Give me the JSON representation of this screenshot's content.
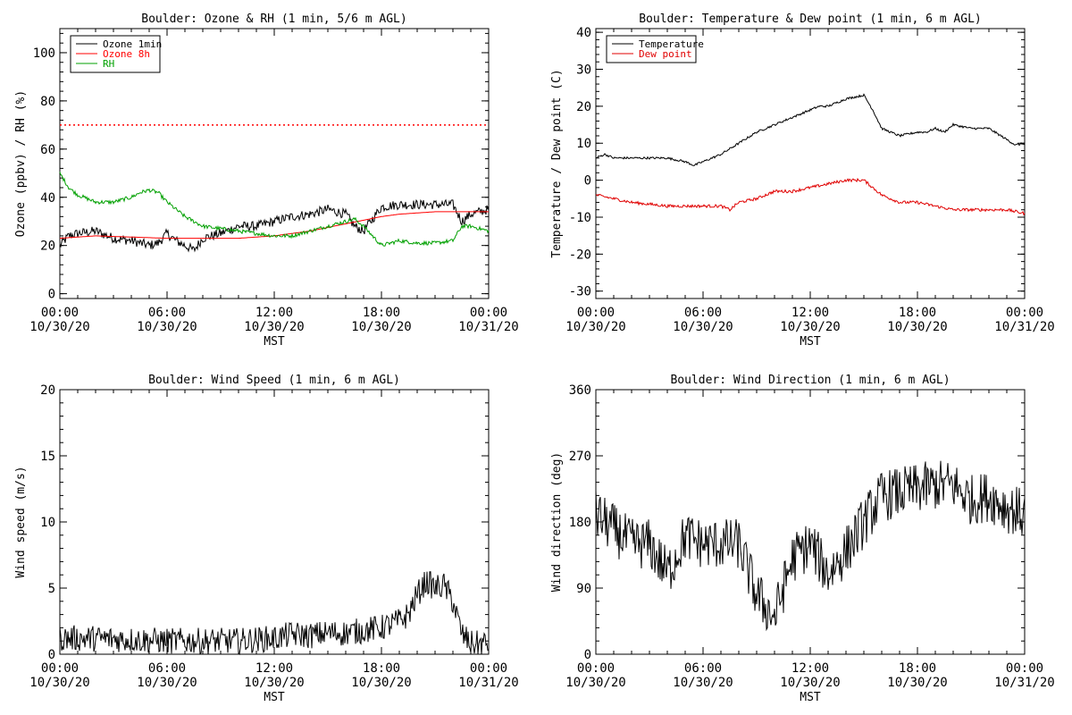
{
  "chart_data": [
    {
      "type": "line",
      "title": "Boulder: Ozone & RH (1 min, 5/6 m AGL)",
      "xlabel": "MST",
      "ylabel": "Ozone (ppbv) / RH (%)",
      "x_ticks": [
        [
          "00:00",
          "10/30/20"
        ],
        [
          "06:00",
          "10/30/20"
        ],
        [
          "12:00",
          "10/30/20"
        ],
        [
          "18:00",
          "10/30/20"
        ],
        [
          "00:00",
          "10/31/20"
        ]
      ],
      "xlim": [
        0,
        24
      ],
      "ylim": [
        -2,
        110
      ],
      "y_ticks": [
        0,
        20,
        40,
        60,
        80,
        100
      ],
      "legend_position": "top-left",
      "reference_line": {
        "y": 70,
        "color": "#ff0000",
        "style": "dotted"
      },
      "series": [
        {
          "name": "Ozone 1min",
          "color": "#000000",
          "noise": 2.0,
          "x": [
            0,
            0.5,
            1,
            2,
            3,
            4,
            5,
            5.5,
            6,
            6.5,
            7,
            7.5,
            8,
            9,
            10,
            11,
            12,
            13,
            14,
            15,
            16,
            16.5,
            17,
            18,
            19,
            20,
            21,
            22,
            22.5,
            23,
            24
          ],
          "y": [
            20,
            24,
            25,
            26,
            23,
            22,
            20,
            21,
            25,
            22,
            20,
            18,
            23,
            25,
            28,
            28,
            30,
            32,
            33,
            35,
            33,
            28,
            26,
            36,
            37,
            37,
            37,
            37,
            30,
            33,
            35
          ]
        },
        {
          "name": "Ozone 8h",
          "color": "#ff0000",
          "noise": 0,
          "x": [
            0,
            2,
            4,
            6,
            8,
            10,
            12,
            14,
            16,
            17,
            18,
            19,
            20,
            21,
            22,
            23,
            24
          ],
          "y": [
            23,
            24,
            23.5,
            23,
            23,
            23,
            24,
            26,
            29,
            30.5,
            32,
            33,
            33.5,
            34,
            34,
            34,
            34
          ]
        },
        {
          "name": "RH",
          "color": "#00a000",
          "noise": 0.8,
          "x": [
            0,
            0.5,
            1,
            2,
            3,
            4,
            4.5,
            5,
            5.5,
            6,
            7,
            8,
            9,
            10,
            11,
            12,
            13,
            14,
            15,
            16,
            16.5,
            17,
            18,
            19,
            20,
            21,
            22,
            22.5,
            23,
            24
          ],
          "y": [
            50,
            44,
            41,
            38,
            38,
            40,
            42,
            43,
            42,
            38,
            32,
            28,
            27,
            26,
            25,
            24,
            24,
            26,
            28,
            30,
            31,
            28,
            20,
            22,
            21,
            21,
            22,
            28,
            28,
            26
          ]
        }
      ]
    },
    {
      "type": "line",
      "title": "Boulder: Temperature & Dew point (1 min, 6 m AGL)",
      "xlabel": "MST",
      "ylabel": "Temperature / Dew point (C)",
      "x_ticks": [
        [
          "00:00",
          "10/30/20"
        ],
        [
          "06:00",
          "10/30/20"
        ],
        [
          "12:00",
          "10/30/20"
        ],
        [
          "18:00",
          "10/30/20"
        ],
        [
          "00:00",
          "10/31/20"
        ]
      ],
      "xlim": [
        0,
        24
      ],
      "ylim": [
        -32,
        41
      ],
      "y_ticks": [
        -30,
        -20,
        -10,
        0,
        10,
        20,
        30,
        40
      ],
      "legend_position": "top-left",
      "series": [
        {
          "name": "Temperature",
          "color": "#000000",
          "noise": 0.3,
          "x": [
            0,
            0.5,
            1,
            2,
            3,
            4,
            5,
            5.5,
            6,
            7,
            8,
            9,
            10,
            11,
            12,
            12.5,
            13,
            14,
            15,
            15.5,
            16,
            17,
            18,
            18.5,
            19,
            19.5,
            20,
            21,
            22,
            23,
            23.5,
            24
          ],
          "y": [
            6,
            7,
            6,
            6,
            6,
            6,
            5,
            4,
            5,
            7,
            10,
            13,
            15,
            17,
            19,
            20,
            20,
            22,
            23,
            19,
            14,
            12,
            13,
            13,
            14,
            13,
            15,
            14,
            14,
            11,
            9.5,
            10
          ]
        },
        {
          "name": "Dew point",
          "color": "#e00000",
          "noise": 0.4,
          "x": [
            0,
            1,
            2,
            3,
            4,
            5,
            6,
            7,
            7.5,
            8,
            9,
            10,
            11,
            12,
            13,
            14,
            15,
            15.5,
            16,
            17,
            18,
            19,
            20,
            21,
            22,
            23,
            24
          ],
          "y": [
            -4,
            -5,
            -6,
            -6.5,
            -7,
            -7,
            -7,
            -7,
            -8,
            -6,
            -5,
            -3,
            -3,
            -2,
            -1,
            0,
            0,
            -2,
            -4,
            -6,
            -6,
            -7,
            -8,
            -8,
            -8,
            -8,
            -9
          ]
        }
      ]
    },
    {
      "type": "line",
      "title": "Boulder: Wind Speed (1 min, 6 m AGL)",
      "xlabel": "MST",
      "ylabel": "Wind speed (m/s)",
      "x_ticks": [
        [
          "00:00",
          "10/30/20"
        ],
        [
          "06:00",
          "10/30/20"
        ],
        [
          "12:00",
          "10/30/20"
        ],
        [
          "18:00",
          "10/30/20"
        ],
        [
          "00:00",
          "10/31/20"
        ]
      ],
      "xlim": [
        0,
        24
      ],
      "ylim": [
        0,
        20
      ],
      "y_ticks": [
        0,
        5,
        10,
        15,
        20
      ],
      "series": [
        {
          "name": "",
          "color": "#000000",
          "noise": 1.0,
          "min": 0,
          "x": [
            0,
            2,
            4,
            6,
            8,
            10,
            12,
            13,
            14,
            15,
            16,
            17,
            18,
            19,
            19.5,
            20,
            20.5,
            21,
            21.5,
            22,
            22.5,
            23,
            23.5,
            24
          ],
          "y": [
            1.2,
            1.2,
            1.1,
            1.0,
            1.0,
            1.0,
            1.2,
            1.5,
            1.4,
            1.6,
            1.6,
            1.8,
            2.0,
            2.5,
            3.0,
            4.5,
            5.5,
            5.0,
            5.2,
            4.0,
            1.5,
            0.8,
            0.8,
            0.8
          ]
        }
      ]
    },
    {
      "type": "line",
      "title": "Boulder: Wind Direction (1 min, 6 m AGL)",
      "xlabel": "MST",
      "ylabel": "Wind direction (deg)",
      "x_ticks": [
        [
          "00:00",
          "10/30/20"
        ],
        [
          "06:00",
          "10/30/20"
        ],
        [
          "12:00",
          "10/30/20"
        ],
        [
          "18:00",
          "10/30/20"
        ],
        [
          "00:00",
          "10/31/20"
        ]
      ],
      "xlim": [
        0,
        24
      ],
      "ylim": [
        0,
        360
      ],
      "y_ticks": [
        0,
        90,
        180,
        270,
        360
      ],
      "series": [
        {
          "name": "",
          "color": "#000000",
          "noise": 35,
          "min": 0,
          "max": 360,
          "x": [
            0,
            1,
            2,
            3,
            4,
            5,
            6,
            7,
            8,
            9,
            10,
            11,
            12,
            13,
            14,
            15,
            16,
            17,
            18,
            19,
            20,
            21,
            22,
            23,
            24
          ],
          "y": [
            190,
            170,
            150,
            150,
            110,
            160,
            150,
            150,
            150,
            80,
            50,
            130,
            150,
            110,
            140,
            180,
            215,
            220,
            225,
            230,
            230,
            210,
            215,
            200,
            190
          ]
        }
      ]
    }
  ]
}
